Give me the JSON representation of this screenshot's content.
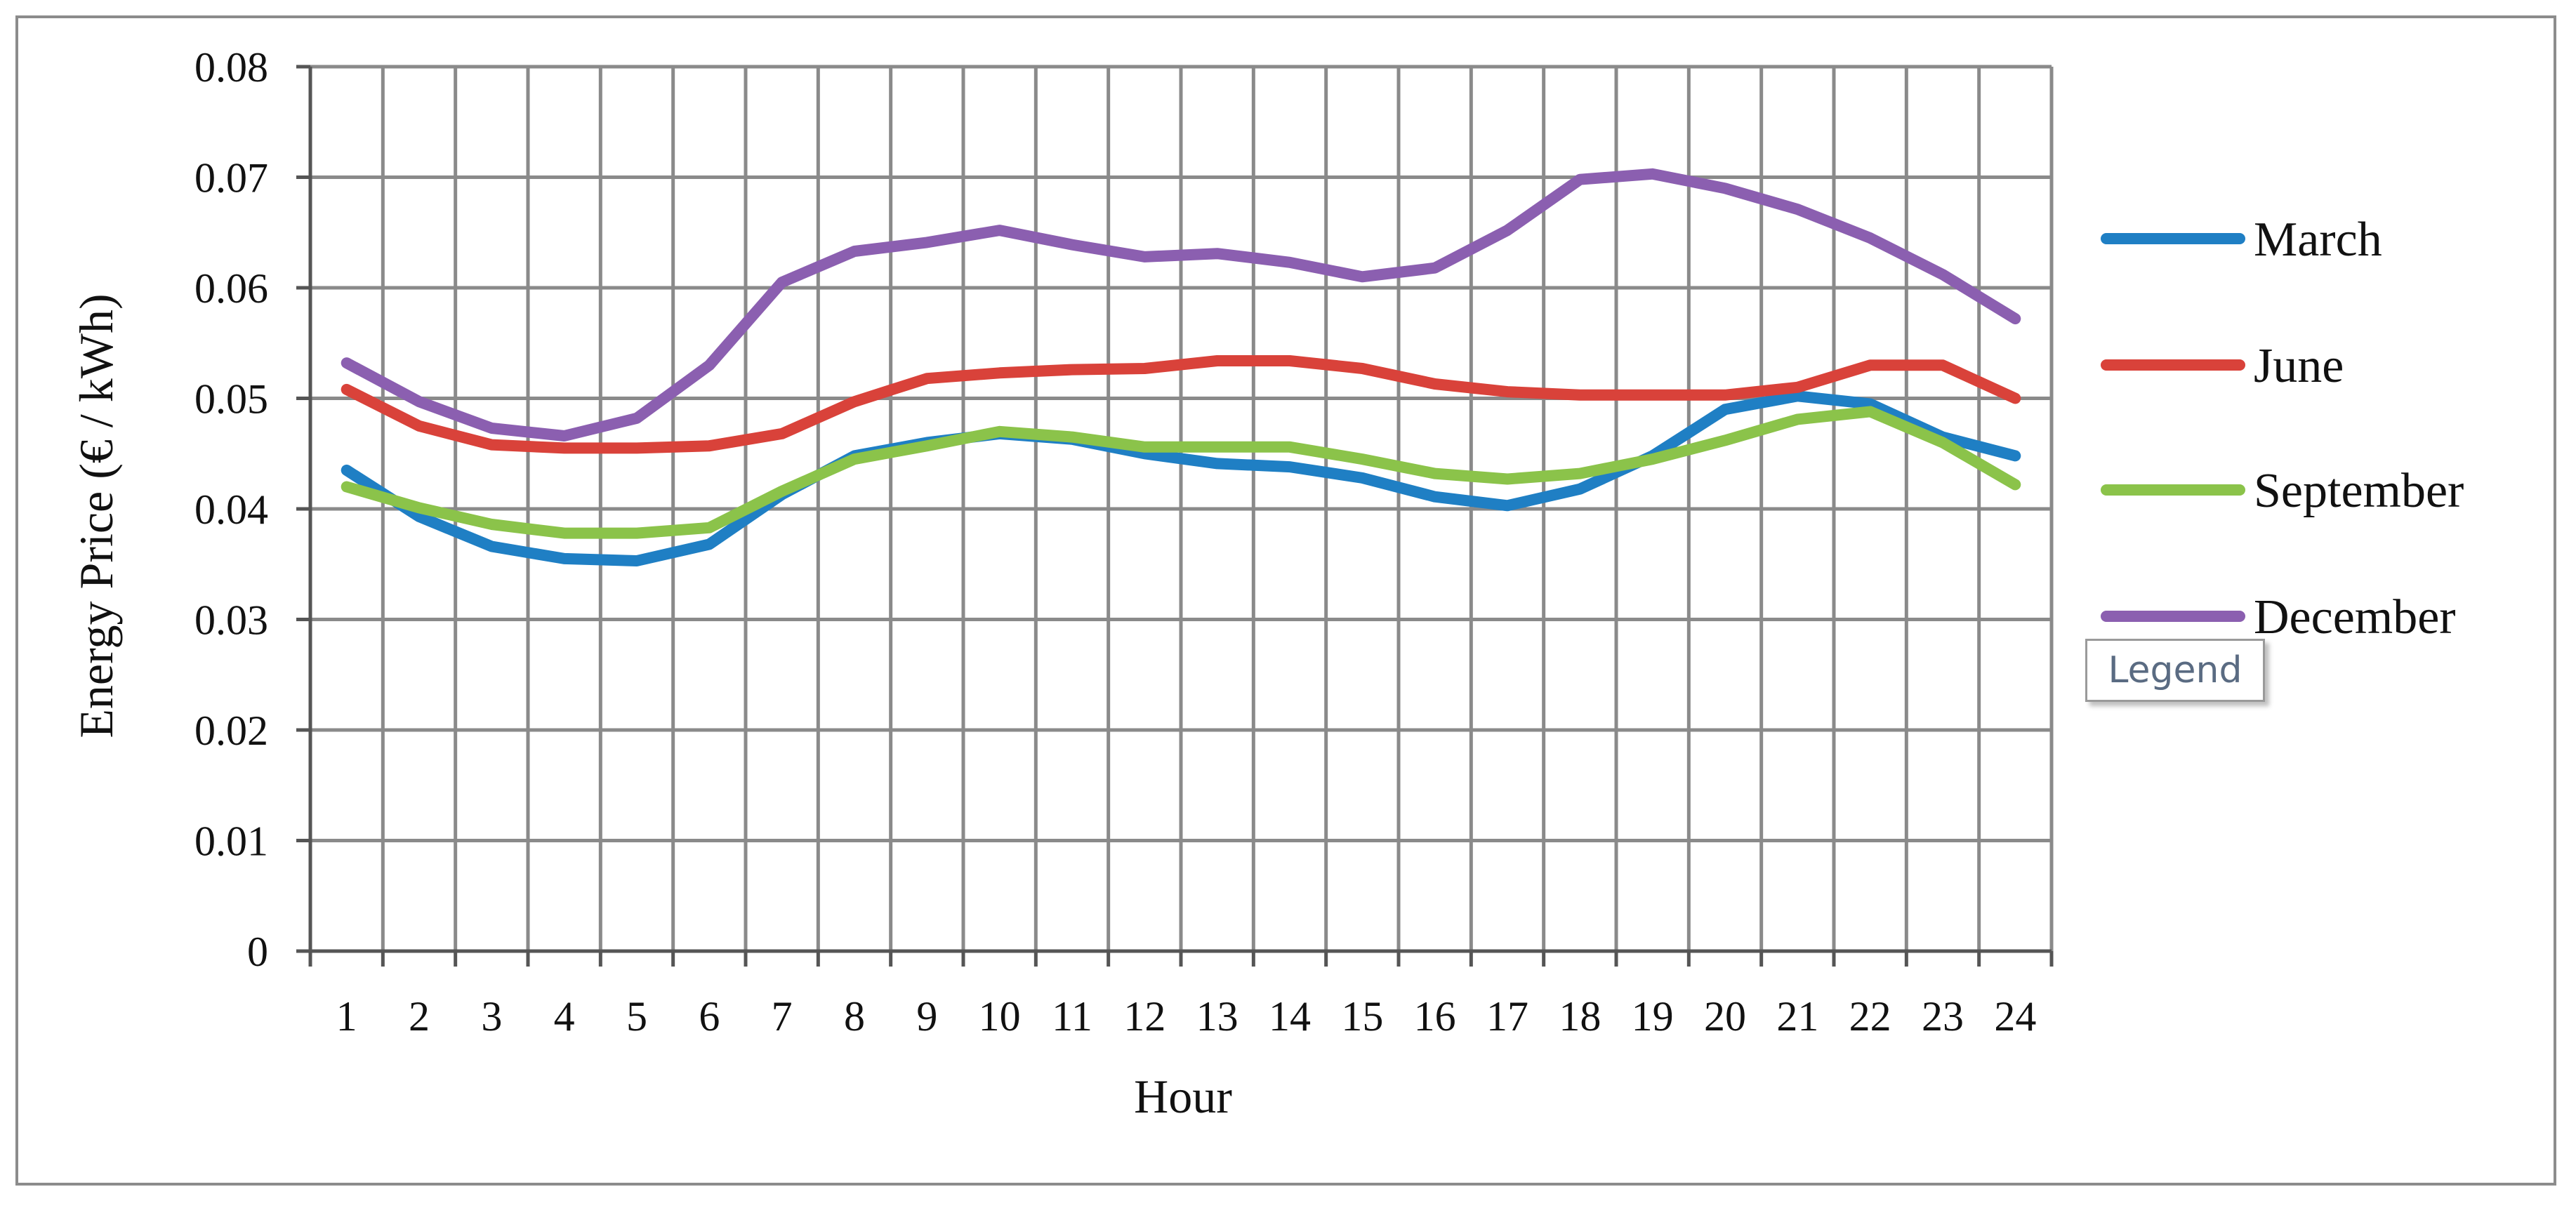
{
  "chart_data": {
    "type": "line",
    "xlabel": "Hour",
    "ylabel": "Energy Price  (€ / kWh)",
    "ylim": [
      0,
      0.08
    ],
    "yticks": [
      "0",
      "0.01",
      "0.02",
      "0.03",
      "0.04",
      "0.05",
      "0.06",
      "0.07",
      "0.08"
    ],
    "x": [
      "1",
      "2",
      "3",
      "4",
      "5",
      "6",
      "7",
      "8",
      "9",
      "10",
      "11",
      "12",
      "13",
      "14",
      "15",
      "16",
      "17",
      "18",
      "19",
      "20",
      "21",
      "22",
      "23",
      "24"
    ],
    "grid": true,
    "legend_position": "right",
    "series": [
      {
        "name": "March",
        "color": "#1f7fc4",
        "values": [
          0.0435,
          0.0393,
          0.0366,
          0.0355,
          0.0353,
          0.0368,
          0.0413,
          0.0448,
          0.046,
          0.0468,
          0.0463,
          0.045,
          0.0441,
          0.0438,
          0.0428,
          0.0411,
          0.0403,
          0.0418,
          0.0448,
          0.049,
          0.0502,
          0.0495,
          0.0465,
          0.0448
        ]
      },
      {
        "name": "June",
        "color": "#d9423a",
        "values": [
          0.0508,
          0.0475,
          0.0458,
          0.0455,
          0.0455,
          0.0457,
          0.0468,
          0.0497,
          0.0518,
          0.0523,
          0.0526,
          0.0527,
          0.0534,
          0.0534,
          0.0527,
          0.0513,
          0.0506,
          0.0503,
          0.0503,
          0.0503,
          0.051,
          0.053,
          0.053,
          0.05
        ]
      },
      {
        "name": "September",
        "color": "#8bc34a",
        "values": [
          0.042,
          0.0401,
          0.0386,
          0.0378,
          0.0378,
          0.0383,
          0.0416,
          0.0445,
          0.0457,
          0.047,
          0.0465,
          0.0456,
          0.0456,
          0.0456,
          0.0445,
          0.0432,
          0.0427,
          0.0432,
          0.0445,
          0.0462,
          0.0481,
          0.0488,
          0.046,
          0.0422
        ]
      },
      {
        "name": "December",
        "color": "#8b5fb0",
        "values": [
          0.0532,
          0.0497,
          0.0473,
          0.0466,
          0.0482,
          0.053,
          0.0605,
          0.0633,
          0.0641,
          0.0652,
          0.0639,
          0.0628,
          0.0631,
          0.0623,
          0.061,
          0.0618,
          0.0652,
          0.0698,
          0.0703,
          0.069,
          0.0671,
          0.0645,
          0.0612,
          0.0572
        ]
      }
    ]
  },
  "tooltip": {
    "label": "Legend"
  }
}
